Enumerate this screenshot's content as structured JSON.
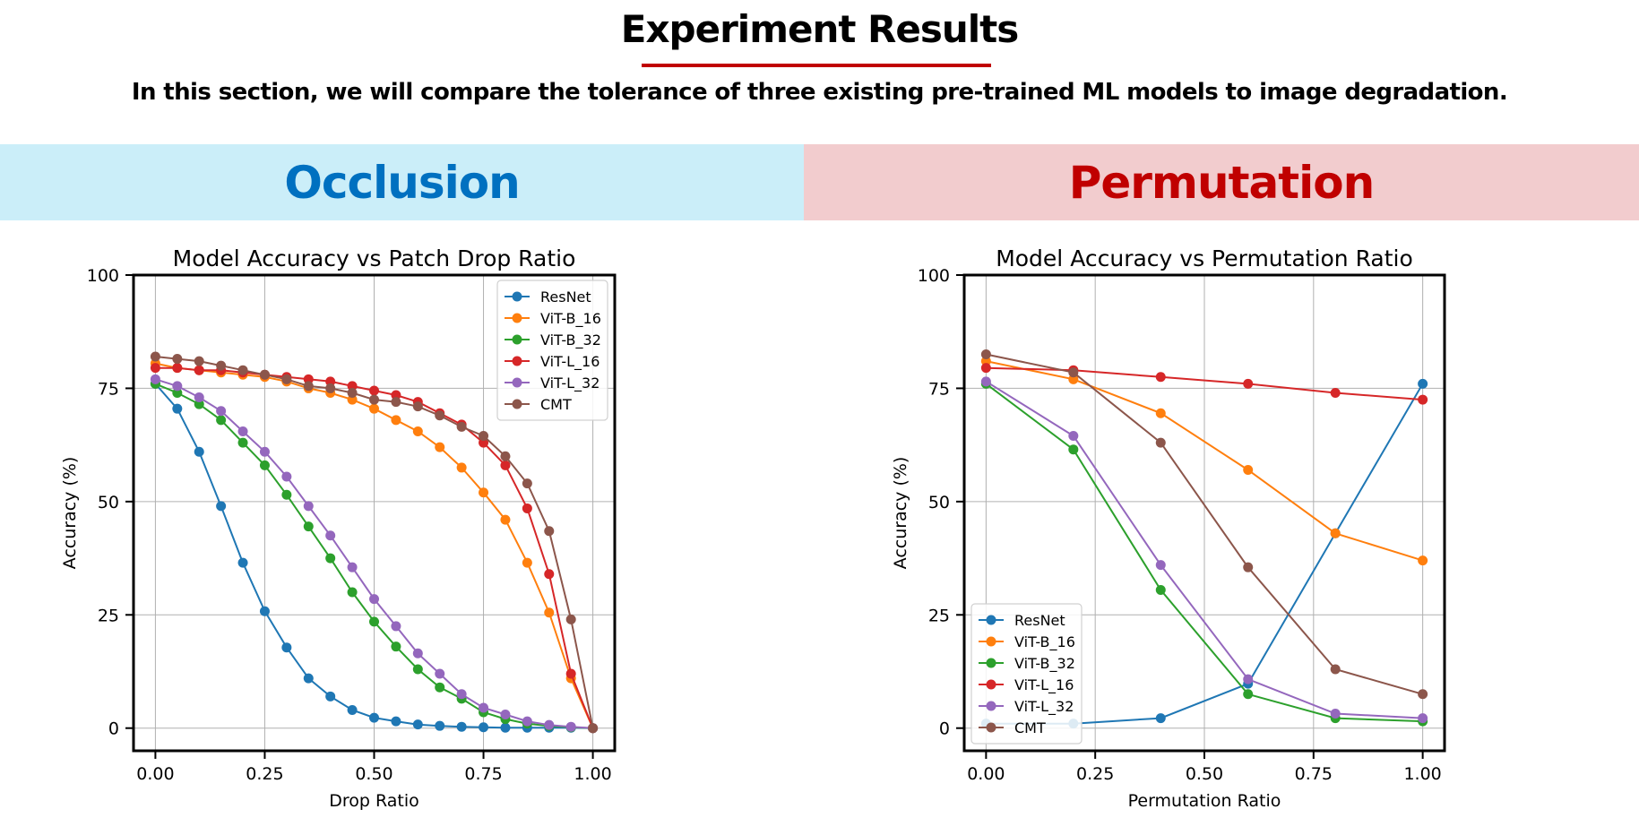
{
  "header": {
    "title": "Experiment Results",
    "subtitle": "In this section, we will compare the tolerance of three existing pre-trained ML models to image degradation.",
    "underline_color": "#c00000"
  },
  "sections": {
    "left": {
      "label": "Occlusion",
      "bg": "#cbeef9",
      "color": "#0070c0"
    },
    "right": {
      "label": "Permutation",
      "bg": "#f2ccce",
      "color": "#c00000"
    }
  },
  "chart_data": [
    {
      "type": "line",
      "title": "Model Accuracy vs Patch Drop Ratio",
      "xlabel": "Drop Ratio",
      "ylabel": "Accuracy (%)",
      "xlim": [
        -0.05,
        1.05
      ],
      "ylim": [
        -5,
        100
      ],
      "xticks": [
        0,
        0.25,
        0.5,
        0.75,
        1.0
      ],
      "xtick_labels": [
        "0.00",
        "0.25",
        "0.50",
        "0.75",
        "1.00"
      ],
      "yticks": [
        0,
        25,
        50,
        75,
        100
      ],
      "ytick_labels": [
        "0",
        "25",
        "50",
        "75",
        "100"
      ],
      "grid": true,
      "legend": "top-right",
      "x": [
        0,
        0.05,
        0.1,
        0.15,
        0.2,
        0.25,
        0.3,
        0.35,
        0.4,
        0.45,
        0.5,
        0.55,
        0.6,
        0.65,
        0.7,
        0.75,
        0.8,
        0.85,
        0.9,
        0.95,
        1.0
      ],
      "series": [
        {
          "name": "ResNet",
          "color": "#1f77b4",
          "values": [
            76,
            70.5,
            61,
            49,
            36.5,
            25.8,
            17.8,
            11,
            7,
            4,
            2.3,
            1.5,
            0.8,
            0.5,
            0.3,
            0.2,
            0.1,
            0.1,
            0.1,
            0.1,
            0
          ]
        },
        {
          "name": "ViT-B_16",
          "color": "#ff7f0e",
          "values": [
            80.5,
            79.5,
            79,
            78.5,
            78,
            77.5,
            76.5,
            75,
            74,
            72.5,
            70.5,
            68,
            65.5,
            62,
            57.5,
            52,
            46,
            36.5,
            25.5,
            11,
            0
          ]
        },
        {
          "name": "ViT-B_32",
          "color": "#2ca02c",
          "values": [
            76,
            74,
            71.5,
            68,
            63,
            58,
            51.5,
            44.5,
            37.5,
            30,
            23.5,
            18,
            13,
            9,
            6.5,
            3.5,
            2,
            1,
            0.5,
            0.2,
            0
          ]
        },
        {
          "name": "ViT-L_16",
          "color": "#d62728",
          "values": [
            79.5,
            79.5,
            79,
            79,
            78.5,
            78,
            77.5,
            77,
            76.5,
            75.5,
            74.5,
            73.5,
            72,
            69.5,
            67,
            63,
            58,
            48.5,
            34,
            12,
            0
          ]
        },
        {
          "name": "ViT-L_32",
          "color": "#9467bd",
          "values": [
            77,
            75.5,
            73,
            70,
            65.5,
            61,
            55.5,
            49,
            42.5,
            35.5,
            28.5,
            22.5,
            16.5,
            12,
            7.5,
            4.5,
            3,
            1.5,
            0.7,
            0.3,
            0
          ]
        },
        {
          "name": "CMT",
          "color": "#8c564b",
          "values": [
            82,
            81.5,
            81,
            80,
            79,
            78,
            77,
            75.5,
            75,
            74,
            72.5,
            72,
            71,
            69,
            66.5,
            64.5,
            60,
            54,
            43.5,
            24,
            0
          ]
        }
      ]
    },
    {
      "type": "line",
      "title": "Model Accuracy vs Permutation Ratio",
      "xlabel": "Permutation Ratio",
      "ylabel": "Accuracy (%)",
      "xlim": [
        -0.05,
        1.05
      ],
      "ylim": [
        -5,
        100
      ],
      "xticks": [
        0,
        0.25,
        0.5,
        0.75,
        1.0
      ],
      "xtick_labels": [
        "0.00",
        "0.25",
        "0.50",
        "0.75",
        "1.00"
      ],
      "yticks": [
        0,
        25,
        50,
        75,
        100
      ],
      "ytick_labels": [
        "0",
        "25",
        "50",
        "75",
        "100"
      ],
      "grid": true,
      "legend": "bottom-left",
      "x": [
        0,
        0.2,
        0.4,
        0.6,
        0.8,
        1.0
      ],
      "series": [
        {
          "name": "ResNet",
          "color": "#1f77b4",
          "values": [
            1,
            1,
            2.2,
            9.8,
            43,
            76
          ]
        },
        {
          "name": "ViT-B_16",
          "color": "#ff7f0e",
          "values": [
            81,
            77,
            69.5,
            57,
            43,
            37
          ]
        },
        {
          "name": "ViT-B_32",
          "color": "#2ca02c",
          "values": [
            76,
            61.5,
            30.5,
            7.5,
            2.2,
            1.5
          ]
        },
        {
          "name": "ViT-L_16",
          "color": "#d62728",
          "values": [
            79.5,
            79,
            77.5,
            76,
            74,
            72.5
          ]
        },
        {
          "name": "ViT-L_32",
          "color": "#9467bd",
          "values": [
            76.5,
            64.5,
            36,
            10.8,
            3.2,
            2.2
          ]
        },
        {
          "name": "CMT",
          "color": "#8c564b",
          "values": [
            82.5,
            78.5,
            63,
            35.5,
            13,
            7.5
          ]
        }
      ]
    }
  ]
}
